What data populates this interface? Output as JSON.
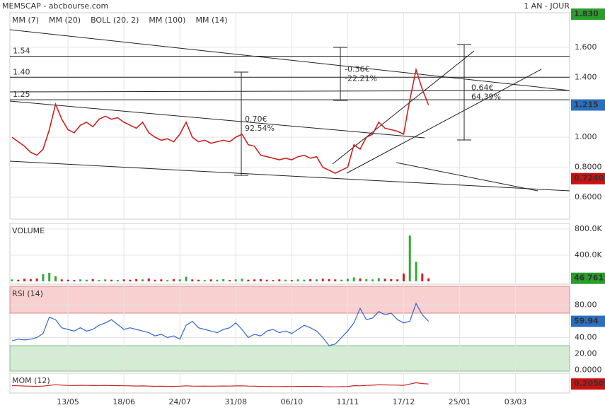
{
  "chart_data": [
    {
      "type": "line",
      "title": "MEMSCAP - abcbourse.com",
      "subtitle": "1 AN - JOUR",
      "color": "#cc2222",
      "indicators": [
        {
          "name": "MM (7)",
          "color": "#3333cc"
        },
        {
          "name": "MM (20)",
          "color": "#cc3333"
        },
        {
          "name": "BOLL (20, 2)",
          "color": "#f0a050"
        },
        {
          "name": "MM (100)",
          "color": "#33aa33"
        },
        {
          "name": "MM (14)",
          "color": "#333333"
        }
      ],
      "values": [
        1.0,
        0.97,
        0.94,
        0.9,
        0.88,
        0.92,
        1.05,
        1.22,
        1.12,
        1.05,
        1.03,
        1.08,
        1.1,
        1.07,
        1.12,
        1.14,
        1.12,
        1.13,
        1.1,
        1.08,
        1.06,
        1.1,
        1.03,
        1.0,
        0.98,
        0.99,
        0.97,
        1.02,
        1.1,
        1.0,
        0.97,
        0.98,
        0.96,
        0.97,
        0.98,
        0.97,
        1.0,
        1.02,
        0.95,
        0.94,
        0.88,
        0.87,
        0.86,
        0.85,
        0.86,
        0.85,
        0.87,
        0.88,
        0.86,
        0.87,
        0.8,
        0.78,
        0.76,
        0.78,
        0.8,
        0.95,
        0.92,
        1.0,
        1.02,
        1.1,
        1.06,
        1.05,
        1.04,
        1.02,
        1.25,
        1.45,
        1.32,
        1.215
      ],
      "xlim": [
        -0.34,
        89.7
      ],
      "xticks": [
        {
          "value": 9,
          "label": "13/05"
        },
        {
          "value": 18,
          "label": "18/06"
        },
        {
          "value": 27,
          "label": "24/07"
        },
        {
          "value": 36,
          "label": "31/08"
        },
        {
          "value": 45,
          "label": "06/10"
        },
        {
          "value": 54,
          "label": "11/11"
        },
        {
          "value": 63,
          "label": "17/12"
        },
        {
          "value": 72,
          "label": "25/01"
        },
        {
          "value": 81,
          "label": "03/03"
        }
      ],
      "ylim": [
        0.454,
        1.83
      ],
      "yticks": [
        {
          "value": 0.6,
          "label": "0.6000"
        },
        {
          "value": 0.8,
          "label": "0.8000"
        },
        {
          "value": 1.0,
          "label": "1.000"
        },
        {
          "value": 1.4,
          "label": "1.400"
        },
        {
          "value": 1.6,
          "label": "1.600"
        }
      ],
      "levels": [
        1.54,
        {
          "value": 1.4,
          "label": "1.40"
        },
        1.25
      ],
      "measures": [
        {
          "change": "0.70€",
          "percent": "92.54%"
        },
        {
          "change": "-0.36€",
          "percent": "-22.21%"
        },
        {
          "change": "0.64€",
          "percent": "64.39%"
        }
      ],
      "top_label": {
        "value": 1.83,
        "label": "1.830"
      },
      "last_label": {
        "value": 1.215,
        "label": "1.215"
      },
      "low_label": {
        "value": 0.724,
        "label": "0.7240"
      }
    },
    {
      "type": "bar",
      "title": "VOLUME",
      "values": [
        30000,
        25000,
        40000,
        35000,
        45000,
        110000,
        130000,
        80000,
        30000,
        25000,
        20000,
        30000,
        25000,
        35000,
        20000,
        30000,
        25000,
        20000,
        30000,
        25000,
        35000,
        30000,
        45000,
        25000,
        30000,
        20000,
        35000,
        30000,
        70000,
        30000,
        25000,
        20000,
        30000,
        25000,
        35000,
        20000,
        30000,
        40000,
        25000,
        30000,
        35000,
        25000,
        20000,
        30000,
        25000,
        20000,
        30000,
        25000,
        35000,
        30000,
        40000,
        35000,
        30000,
        25000,
        40000,
        60000,
        45000,
        35000,
        30000,
        50000,
        40000,
        35000,
        30000,
        120000,
        700000,
        300000,
        120000,
        46761
      ],
      "ylim": [
        -43000,
        886000
      ],
      "yticks": [
        {
          "value": 400000,
          "label": "400.0K"
        },
        {
          "value": 800000,
          "label": "800.0K"
        }
      ],
      "last_label": {
        "value": 46761,
        "label": "46 761"
      }
    },
    {
      "type": "line",
      "title": "RSI (14)",
      "color": "#3366cc",
      "values": [
        36,
        38,
        37,
        38,
        40,
        45,
        65,
        62,
        52,
        50,
        48,
        52,
        48,
        50,
        55,
        58,
        62,
        56,
        50,
        52,
        50,
        48,
        46,
        42,
        44,
        40,
        42,
        38,
        55,
        60,
        52,
        50,
        48,
        46,
        50,
        52,
        58,
        50,
        40,
        44,
        42,
        48,
        50,
        46,
        48,
        45,
        50,
        55,
        52,
        48,
        40,
        30,
        32,
        40,
        48,
        58,
        76,
        62,
        64,
        72,
        68,
        70,
        62,
        58,
        60,
        82,
        68,
        59.94
      ],
      "ylim": [
        -1.3,
        103
      ],
      "yticks": [
        {
          "value": 0,
          "label": "0.0000"
        },
        {
          "value": 20,
          "label": "20.00"
        },
        {
          "value": 40,
          "label": "40.00"
        },
        {
          "value": 80,
          "label": "80.00"
        }
      ],
      "bands": [
        30,
        70
      ]
    },
    {
      "type": "line",
      "title": "MOM (12)",
      "color": "#cc2222",
      "values": [
        0.02,
        0.01,
        -0.02,
        -0.04,
        -0.05,
        -0.03,
        0.05,
        0.12,
        0.08,
        0.05,
        0.04,
        0.06,
        0.05,
        0.03,
        0.04,
        0.05,
        0.03,
        0.02,
        0.01,
        0.0,
        -0.02,
        -0.01,
        -0.03,
        -0.05,
        -0.04,
        -0.05,
        -0.06,
        -0.04,
        0.0,
        -0.03,
        -0.04,
        -0.03,
        -0.04,
        -0.03,
        -0.02,
        -0.03,
        -0.01,
        0.0,
        -0.03,
        -0.04,
        -0.06,
        -0.07,
        -0.08,
        -0.08,
        -0.07,
        -0.08,
        -0.06,
        -0.05,
        -0.06,
        -0.05,
        -0.09,
        -0.1,
        -0.11,
        -0.09,
        -0.07,
        0.02,
        0.0,
        0.05,
        0.07,
        0.12,
        0.1,
        0.09,
        0.08,
        0.06,
        0.2,
        0.35,
        0.25,
        0.205
      ],
      "ylim": [
        -0.8,
        1.4
      ],
      "last_label": {
        "value": 0.205,
        "label": "0.2050"
      }
    }
  ]
}
